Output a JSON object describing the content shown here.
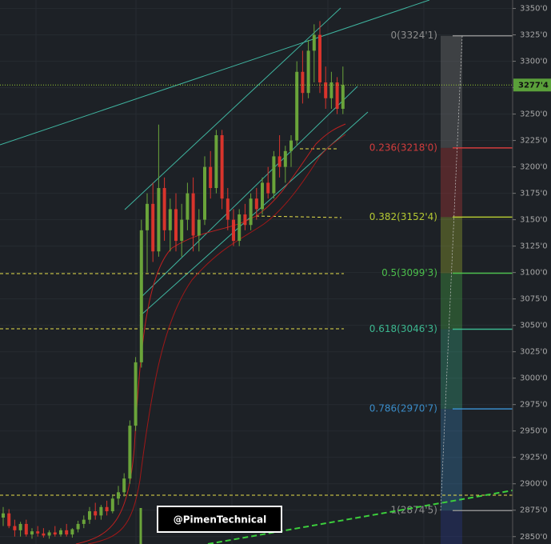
{
  "chart_data": {
    "type": "candlestick",
    "ylim": [
      2843,
      3358
    ],
    "yticks": [
      {
        "value": 2850,
        "label": "2850'0"
      },
      {
        "value": 2875,
        "label": "2875'0"
      },
      {
        "value": 2900,
        "label": "2900'0"
      },
      {
        "value": 2925,
        "label": "2925'0"
      },
      {
        "value": 2950,
        "label": "2950'0"
      },
      {
        "value": 2975,
        "label": "2975'0"
      },
      {
        "value": 3000,
        "label": "3000'0"
      },
      {
        "value": 3025,
        "label": "3025'0"
      },
      {
        "value": 3050,
        "label": "3050'0"
      },
      {
        "value": 3075,
        "label": "3075'0"
      },
      {
        "value": 3100,
        "label": "3100'0"
      },
      {
        "value": 3125,
        "label": "3125'0"
      },
      {
        "value": 3150,
        "label": "3150'0"
      },
      {
        "value": 3175,
        "label": "3175'0"
      },
      {
        "value": 3200,
        "label": "3200'0"
      },
      {
        "value": 3225,
        "label": "3225'0"
      },
      {
        "value": 3250,
        "label": "3250'0"
      },
      {
        "value": 3275,
        "label": "3275'0"
      },
      {
        "value": 3300,
        "label": "3300'0"
      },
      {
        "value": 3325,
        "label": "3325'0"
      },
      {
        "value": 3350,
        "label": "3350'0"
      }
    ],
    "grid": true,
    "up_color": "#6aa43a",
    "down_color": "#d8342c",
    "candles": {
      "open": [
        2868,
        2872,
        2860,
        2856,
        2862,
        2852,
        2855,
        2853,
        2851,
        2854,
        2852,
        2856,
        2852,
        2857,
        2862,
        2866,
        2874,
        2870,
        2878,
        2874,
        2886,
        2892,
        2905,
        2955,
        3015,
        3140,
        3165,
        3120,
        3180,
        3140,
        3160,
        3130,
        3150,
        3175,
        3135,
        3150,
        3200,
        3180,
        3230,
        3170,
        3150,
        3130,
        3155,
        3145,
        3170,
        3160,
        3185,
        3175,
        3210,
        3200,
        3215,
        3225,
        3290,
        3270,
        3310,
        3325,
        3280,
        3265,
        3280,
        3255
      ],
      "high": [
        2878,
        2876,
        2866,
        2864,
        2866,
        2858,
        2860,
        2858,
        2856,
        2860,
        2858,
        2862,
        2858,
        2865,
        2870,
        2878,
        2882,
        2880,
        2884,
        2890,
        2898,
        2910,
        2960,
        3020,
        3150,
        3175,
        3185,
        3240,
        3190,
        3170,
        3175,
        3165,
        3185,
        3190,
        3160,
        3210,
        3215,
        3235,
        3235,
        3180,
        3160,
        3160,
        3165,
        3175,
        3180,
        3190,
        3200,
        3215,
        3230,
        3220,
        3230,
        3300,
        3310,
        3320,
        3335,
        3338,
        3295,
        3290,
        3285,
        3295
      ],
      "low": [
        2860,
        2858,
        2850,
        2850,
        2850,
        2848,
        2850,
        2849,
        2848,
        2850,
        2850,
        2850,
        2849,
        2854,
        2858,
        2862,
        2866,
        2866,
        2870,
        2872,
        2880,
        2888,
        2900,
        2950,
        3010,
        3100,
        3110,
        3115,
        3130,
        3120,
        3120,
        3115,
        3140,
        3120,
        3120,
        3145,
        3170,
        3175,
        3160,
        3140,
        3125,
        3125,
        3140,
        3140,
        3150,
        3155,
        3170,
        3170,
        3190,
        3185,
        3200,
        3220,
        3260,
        3265,
        3280,
        3270,
        3255,
        3255,
        3250,
        3250
      ],
      "close": [
        2872,
        2860,
        2856,
        2862,
        2852,
        2855,
        2853,
        2851,
        2854,
        2852,
        2856,
        2852,
        2857,
        2862,
        2866,
        2874,
        2870,
        2878,
        2874,
        2886,
        2892,
        2905,
        2955,
        3015,
        3140,
        3165,
        3120,
        3180,
        3140,
        3160,
        3130,
        3150,
        3175,
        3135,
        3150,
        3200,
        3180,
        3230,
        3170,
        3150,
        3130,
        3155,
        3145,
        3170,
        3160,
        3185,
        3175,
        3210,
        3200,
        3215,
        3225,
        3290,
        3270,
        3310,
        3325,
        3280,
        3265,
        3280,
        3255,
        3277.5
      ]
    },
    "last_price": {
      "value": 3277.5,
      "label": "3277'4"
    },
    "fib_levels": [
      {
        "label": "0(3324'1)",
        "value": 3324.125,
        "color": "#8c8c8c"
      },
      {
        "label": "0.236(3218'0)",
        "value": 3218,
        "color": "#d23c3c"
      },
      {
        "label": "0.382(3152'4)",
        "value": 3152.5,
        "color": "#b4c832"
      },
      {
        "label": "0.5(3099'3)",
        "value": 3099.375,
        "color": "#4cbf4c"
      },
      {
        "label": "0.618(3046'3)",
        "value": 3046.375,
        "color": "#3cb890"
      },
      {
        "label": "0.786(2970'7)",
        "value": 2970.875,
        "color": "#3a8cc8"
      },
      {
        "label": "1(2874'5)",
        "value": 2874.625,
        "color": "#8c8c8c"
      }
    ],
    "watermark": "@PimenTechnical"
  }
}
